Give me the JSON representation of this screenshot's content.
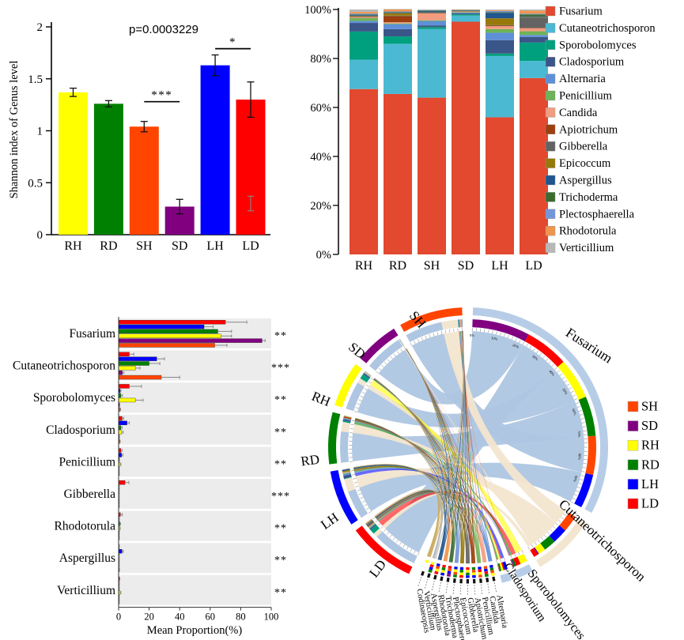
{
  "colors": {
    "samples": {
      "SH": "#ff4500",
      "SD": "#800080",
      "RH": "#ffff00",
      "RD": "#008000",
      "LH": "#0000ff",
      "LD": "#ff0000"
    },
    "genera": {
      "Fusarium": "#e2492f",
      "Cutaneotrichosporon": "#4cb9d3",
      "Sporobolomyces": "#00a07e",
      "Cladosporium": "#3a5588",
      "Alternaria": "#5e90d8",
      "Penicillium": "#6fb257",
      "Candida": "#f29c80",
      "Apiotrichum": "#9d3f0e",
      "Gibberella": "#636363",
      "Epicoccum": "#97790a",
      "Aspergillus": "#20568f",
      "Trichoderma": "#3a6b2d",
      "Plectosphaerella": "#7396da",
      "Rhodotorula": "#f0954e",
      "Verticillium": "#b8b8b8",
      "Codinaeopsis": "#c8a959"
    },
    "fusarium_ribbon": "#aec6e2",
    "cutaneo_ribbon": "#f3e6d0",
    "genus_outer_ring": "#b7cde7",
    "axis": "#000000",
    "band_bg": "#ececec"
  },
  "chart_data": [
    {
      "id": "shannon-index",
      "type": "bar",
      "title": "p=0.0003229",
      "ylabel": "Shannon index of Genus level",
      "categories": [
        "RH",
        "RD",
        "SH",
        "SD",
        "LH",
        "LD"
      ],
      "values": [
        1.37,
        1.26,
        1.04,
        0.27,
        1.63,
        1.3
      ],
      "errors": [
        0.04,
        0.03,
        0.05,
        0.07,
        0.1,
        0.17
      ],
      "ylim": [
        0,
        2
      ],
      "yticks": [
        0,
        0.5,
        1,
        1.5,
        2
      ],
      "ytick_labels": [
        "0",
        "0.5",
        "1",
        "1.5",
        "2"
      ],
      "significance": [
        {
          "from": "SH",
          "to": "SD",
          "label": "***",
          "y": 1.28
        },
        {
          "from": "LH",
          "to": "LD",
          "label": "*",
          "y": 1.79
        }
      ],
      "stray_mark": {
        "category": "LD",
        "value": 0.3,
        "half": 0.07
      }
    },
    {
      "id": "genus-composition",
      "type": "bar-stacked",
      "categories": [
        "RH",
        "RD",
        "SH",
        "SD",
        "LH",
        "LD"
      ],
      "ytick_labels": [
        "0%",
        "20%",
        "40%",
        "60%",
        "80%",
        "100%"
      ],
      "yticks": [
        0,
        20,
        40,
        60,
        80,
        100
      ],
      "series": [
        {
          "name": "Fusarium",
          "values": [
            67.5,
            65.5,
            64,
            95,
            56,
            72
          ]
        },
        {
          "name": "Cutaneotrichosporon",
          "values": [
            12,
            20.5,
            28,
            2.5,
            25,
            7
          ]
        },
        {
          "name": "Sporobolomyces",
          "values": [
            11.5,
            3,
            0.8,
            0.5,
            1,
            7.5
          ]
        },
        {
          "name": "Cladosporium",
          "values": [
            3.5,
            3,
            0.7,
            0.4,
            5.5,
            2.3
          ]
        },
        {
          "name": "Alternaria",
          "values": [
            0.8,
            2,
            1.8,
            0.3,
            3,
            0.8
          ]
        },
        {
          "name": "Penicillium",
          "values": [
            1.2,
            0.3,
            0.3,
            0.2,
            1.5,
            1.5
          ]
        },
        {
          "name": "Candida",
          "values": [
            0.3,
            0.5,
            2.8,
            0.2,
            1.2,
            1.2
          ]
        },
        {
          "name": "Apiotrichum",
          "values": [
            0.2,
            2.5,
            0.2,
            0.1,
            0.2,
            0.2
          ]
        },
        {
          "name": "Gibberella",
          "values": [
            0.2,
            0.2,
            0.1,
            0.1,
            0.2,
            4.2
          ]
        },
        {
          "name": "Epicoccum",
          "values": [
            0.2,
            1.0,
            0.1,
            0.1,
            2.8,
            0.2
          ]
        },
        {
          "name": "Aspergillus",
          "values": [
            0.3,
            0.2,
            0.4,
            0.2,
            2.2,
            0.3
          ]
        },
        {
          "name": "Trichoderma",
          "values": [
            0.2,
            0.2,
            0.3,
            0.2,
            0.3,
            0.8
          ]
        },
        {
          "name": "Plectosphaerella",
          "values": [
            0.4,
            0.3,
            0.3,
            0.1,
            0.5,
            0.3
          ]
        },
        {
          "name": "Rhodotorula",
          "values": [
            0.7,
            0.8,
            0.1,
            0.1,
            0.3,
            1.2
          ]
        },
        {
          "name": "Verticillium",
          "values": [
            1.0,
            0.2,
            0.1,
            0.0,
            0.3,
            0.5
          ]
        }
      ],
      "legend": [
        "Fusarium",
        "Cutaneotrichosporon",
        "Sporobolomyces",
        "Cladosporium",
        "Alternaria",
        "Penicillium",
        "Candida",
        "Apiotrichum",
        "Gibberella",
        "Epicoccum",
        "Aspergillus",
        "Trichoderma",
        "Plectosphaerella",
        "Rhodotorula",
        "Verticillium"
      ]
    },
    {
      "id": "mean-proportion",
      "type": "bar-horizontal-grouped",
      "xlabel": "Mean Proportion(%)",
      "xticks": [
        0,
        20,
        40,
        60,
        80,
        100
      ],
      "series_order": [
        "LD",
        "LH",
        "RD",
        "RH",
        "SD",
        "SH"
      ],
      "groups": [
        {
          "genus": "Fusarium",
          "sig": "**",
          "values": [
            70,
            56,
            65,
            67,
            94,
            63
          ],
          "errors": [
            14,
            6,
            9,
            7,
            2,
            8
          ]
        },
        {
          "genus": "Cutaneotrichosporon",
          "sig": "***",
          "values": [
            7,
            25,
            20,
            11,
            2.5,
            28
          ],
          "errors": [
            3,
            5,
            7,
            3,
            1,
            12
          ]
        },
        {
          "genus": "Sporobolomyces",
          "sig": "**",
          "values": [
            7,
            1,
            1.5,
            11,
            0.5,
            0.8
          ],
          "errors": [
            8,
            0.5,
            1,
            5,
            0.3,
            0.5
          ]
        },
        {
          "genus": "Cladosporium",
          "sig": "**",
          "values": [
            2.3,
            5.5,
            1.5,
            2,
            0.4,
            0.7
          ],
          "errors": [
            1,
            1.5,
            0.8,
            1,
            0.2,
            0.3
          ]
        },
        {
          "genus": "Penicillium",
          "sig": "**",
          "values": [
            1.5,
            2,
            0.4,
            1,
            0.2,
            0.3
          ],
          "errors": [
            0.7,
            0.8,
            0.2,
            0.5,
            0.1,
            0.2
          ]
        },
        {
          "genus": "Gibberella",
          "sig": "***",
          "values": [
            4.2,
            0.2,
            0.2,
            0.2,
            0.1,
            0.1
          ],
          "errors": [
            2.5,
            0.1,
            0.1,
            0.1,
            0.1,
            0.1
          ]
        },
        {
          "genus": "Rhodotorula",
          "sig": "**",
          "values": [
            1.2,
            0.3,
            0.8,
            0.7,
            0.1,
            0.1
          ],
          "errors": [
            1.2,
            0.2,
            0.4,
            0.3,
            0.1,
            0.1
          ]
        },
        {
          "genus": "Aspergillus",
          "sig": "**",
          "values": [
            0.3,
            2.2,
            0.2,
            0.3,
            0.2,
            0.4
          ],
          "errors": [
            0.2,
            0.8,
            0.1,
            0.2,
            0.1,
            0.2
          ]
        },
        {
          "genus": "Verticillium",
          "sig": "**",
          "values": [
            0.5,
            0.3,
            0.2,
            1.0,
            0.1,
            0.1
          ],
          "errors": [
            0.3,
            0.2,
            0.1,
            0.5,
            0.1,
            0.1
          ]
        }
      ]
    },
    {
      "id": "sample-genus-chord",
      "type": "chord",
      "legend": [
        "SH",
        "SD",
        "RH",
        "RD",
        "LH",
        "LD"
      ],
      "genus_order": [
        "Fusarium",
        "Cutaneotrichosporon",
        "Sporobolomyces",
        "Cladosporium",
        "Alternaria",
        "Penicillium",
        "Candida",
        "Apiotrichum",
        "Gibberella",
        "Epicoccum",
        "Aspergillus",
        "Trichoderma",
        "Plectosphaerella",
        "Rhodotorula",
        "Verticillium",
        "Codinaeopsis"
      ],
      "sample_arcs": [
        {
          "name": "LD",
          "a1": 205,
          "a2": 233.5
        },
        {
          "name": "LH",
          "a1": 236.5,
          "a2": 260
        },
        {
          "name": "RD",
          "a1": 263,
          "a2": 284.5
        },
        {
          "name": "RH",
          "a1": 287.5,
          "a2": 306.5
        },
        {
          "name": "SD",
          "a1": 309.5,
          "a2": 328
        },
        {
          "name": "SH",
          "a1": 331,
          "a2": 357.5
        }
      ],
      "genus_arcs": [
        {
          "name": "Fusarium",
          "a1": 2,
          "a2": 118,
          "order": [
            "SD",
            "LD",
            "RH",
            "RD",
            "SH",
            "LH"
          ]
        },
        {
          "name": "Cutaneotrichosporon",
          "a1": 123,
          "a2": 149,
          "order": [
            "SH",
            "LH",
            "RD",
            "RH",
            "SD",
            "LD"
          ]
        },
        {
          "name": "Sporobolomyces",
          "a1": 152.5,
          "a2": 159.5,
          "order": [
            "RH",
            "LD",
            "RD",
            "LH",
            "SH",
            "SD"
          ]
        },
        {
          "name": "Cladosporium",
          "a1": 162,
          "a2": 166,
          "order": [
            "LH",
            "LD",
            "RH",
            "RD",
            "SH",
            "SD"
          ]
        }
      ],
      "tiny_genera": [
        {
          "name": "Alternaria",
          "az": 169
        },
        {
          "name": "Candida",
          "az": 171.8
        },
        {
          "name": "Penicillium",
          "az": 174.6
        },
        {
          "name": "Apiotrichum",
          "az": 177.4
        },
        {
          "name": "Gibberella",
          "az": 180.2
        },
        {
          "name": "Epicoccum",
          "az": 183
        },
        {
          "name": "Plectosphaerella",
          "az": 185.8
        },
        {
          "name": "Trichoderma",
          "az": 188.6
        },
        {
          "name": "Rhodotorula",
          "az": 191.4
        },
        {
          "name": "Aspergillus",
          "az": 194.2
        },
        {
          "name": "Verticillium",
          "az": 197
        },
        {
          "name": "Codinaeopsis",
          "az": 199.8
        }
      ],
      "codinaeopsis_values": {
        "RH": 0.3,
        "RD": 0.1,
        "SH": 0.1,
        "SD": 0.05,
        "LH": 0.1,
        "LD": 0.1
      },
      "tick_percent_labels": [
        "0%",
        "10%",
        "20%",
        "30%",
        "40%",
        "50%",
        "60%",
        "70%",
        "80%",
        "90%"
      ]
    }
  ]
}
